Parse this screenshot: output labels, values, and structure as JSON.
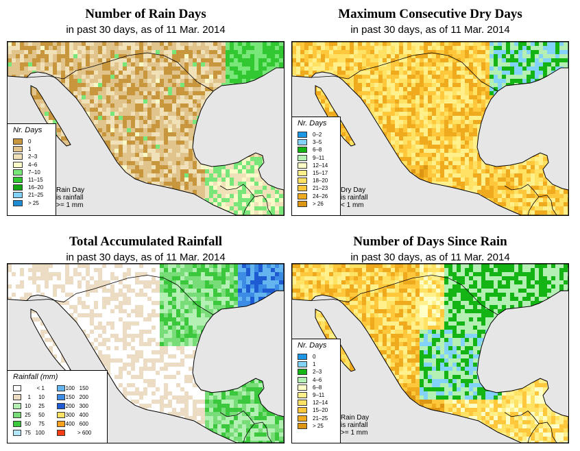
{
  "colors": {
    "water": "#e6e6e6",
    "land_dry": "#ffffff",
    "coast": "#000000"
  },
  "panels": [
    {
      "id": "rain-days",
      "title": "Number of Rain Days",
      "subtitle": "in past 30 days, as of  11 Mar. 2014",
      "legend_title": "Nr. Days",
      "legend": [
        {
          "label": "0",
          "color": "#c8963c"
        },
        {
          "label": "1",
          "color": "#e1c38c"
        },
        {
          "label": "2–3",
          "color": "#f0e1b9"
        },
        {
          "label": "4–6",
          "color": "#fafac8"
        },
        {
          "label": "7–10",
          "color": "#78e678"
        },
        {
          "label": "11–15",
          "color": "#32c832"
        },
        {
          "label": "16–20",
          "color": "#14a514"
        },
        {
          "label": "21–25",
          "color": "#82d2fa"
        },
        {
          "label": "> 25",
          "color": "#1e8cd2"
        }
      ],
      "note": [
        "Rain Day",
        "is rainfall",
        ">= 1 mm"
      ]
    },
    {
      "id": "dry-days",
      "title": "Maximum Consecutive Dry Days",
      "subtitle": "in past 30 days, as of  11 Mar. 2014",
      "legend_title": "Nr. Days",
      "legend": [
        {
          "label": "0–2",
          "color": "#1e96e6"
        },
        {
          "label": "3–5",
          "color": "#82d2fa"
        },
        {
          "label": "6–8",
          "color": "#14b414"
        },
        {
          "label": "9–11",
          "color": "#b4f0b4"
        },
        {
          "label": "12–14",
          "color": "#ffffc8"
        },
        {
          "label": "15–17",
          "color": "#fff08c"
        },
        {
          "label": "18–20",
          "color": "#ffe164"
        },
        {
          "label": "21–23",
          "color": "#ffc83c"
        },
        {
          "label": "24–26",
          "color": "#f0aa1e"
        },
        {
          "label": "> 26",
          "color": "#dc9614"
        }
      ],
      "note": [
        "Dry Day",
        "is rainfall",
        "< 1 mm"
      ]
    },
    {
      "id": "accum-rain",
      "title": "Total Accumulated Rainfall",
      "subtitle": "in past 30 days, as of  11 Mar. 2014",
      "legend_title": "Rainfall (mm)",
      "legend": [
        {
          "a": "",
          "b": "< 1",
          "color": "#ffffff"
        },
        {
          "a": "1",
          "b": "10",
          "color": "#ebdcc3"
        },
        {
          "a": "10",
          "b": "25",
          "color": "#b4f0b4"
        },
        {
          "a": "25",
          "b": "50",
          "color": "#78dc78"
        },
        {
          "a": "50",
          "b": "75",
          "color": "#3cc83c"
        },
        {
          "a": "75",
          "b": "100",
          "color": "#b4e6fa"
        },
        {
          "a": "100",
          "b": "150",
          "color": "#64b4f0"
        },
        {
          "a": "150",
          "b": "200",
          "color": "#3c8ce6"
        },
        {
          "a": "200",
          "b": "300",
          "color": "#1e5ad2"
        },
        {
          "a": "300",
          "b": "400",
          "color": "#ffe164"
        },
        {
          "a": "400",
          "b": "600",
          "color": "#ffa01e"
        },
        {
          "a": "",
          "b": "> 600",
          "color": "#ff3c14"
        }
      ]
    },
    {
      "id": "since-rain",
      "title": "Number of Days Since Rain",
      "subtitle": "in past 30 days, as of  11 Mar. 2014",
      "legend_title": "Nr. Days",
      "legend": [
        {
          "label": "0",
          "color": "#1e96e6"
        },
        {
          "label": "1",
          "color": "#82d2fa"
        },
        {
          "label": "2–3",
          "color": "#14b414"
        },
        {
          "label": "4–6",
          "color": "#b4f0b4"
        },
        {
          "label": "6–8",
          "color": "#ffffc8"
        },
        {
          "label": "9–11",
          "color": "#fff08c"
        },
        {
          "label": "12–14",
          "color": "#ffe164"
        },
        {
          "label": "15–20",
          "color": "#ffc83c"
        },
        {
          "label": "21–25",
          "color": "#f0aa1e"
        },
        {
          "label": "> 25",
          "color": "#dc9614"
        }
      ],
      "note": [
        "Rain Day",
        "is rainfall",
        ">= 1 mm"
      ]
    }
  ]
}
